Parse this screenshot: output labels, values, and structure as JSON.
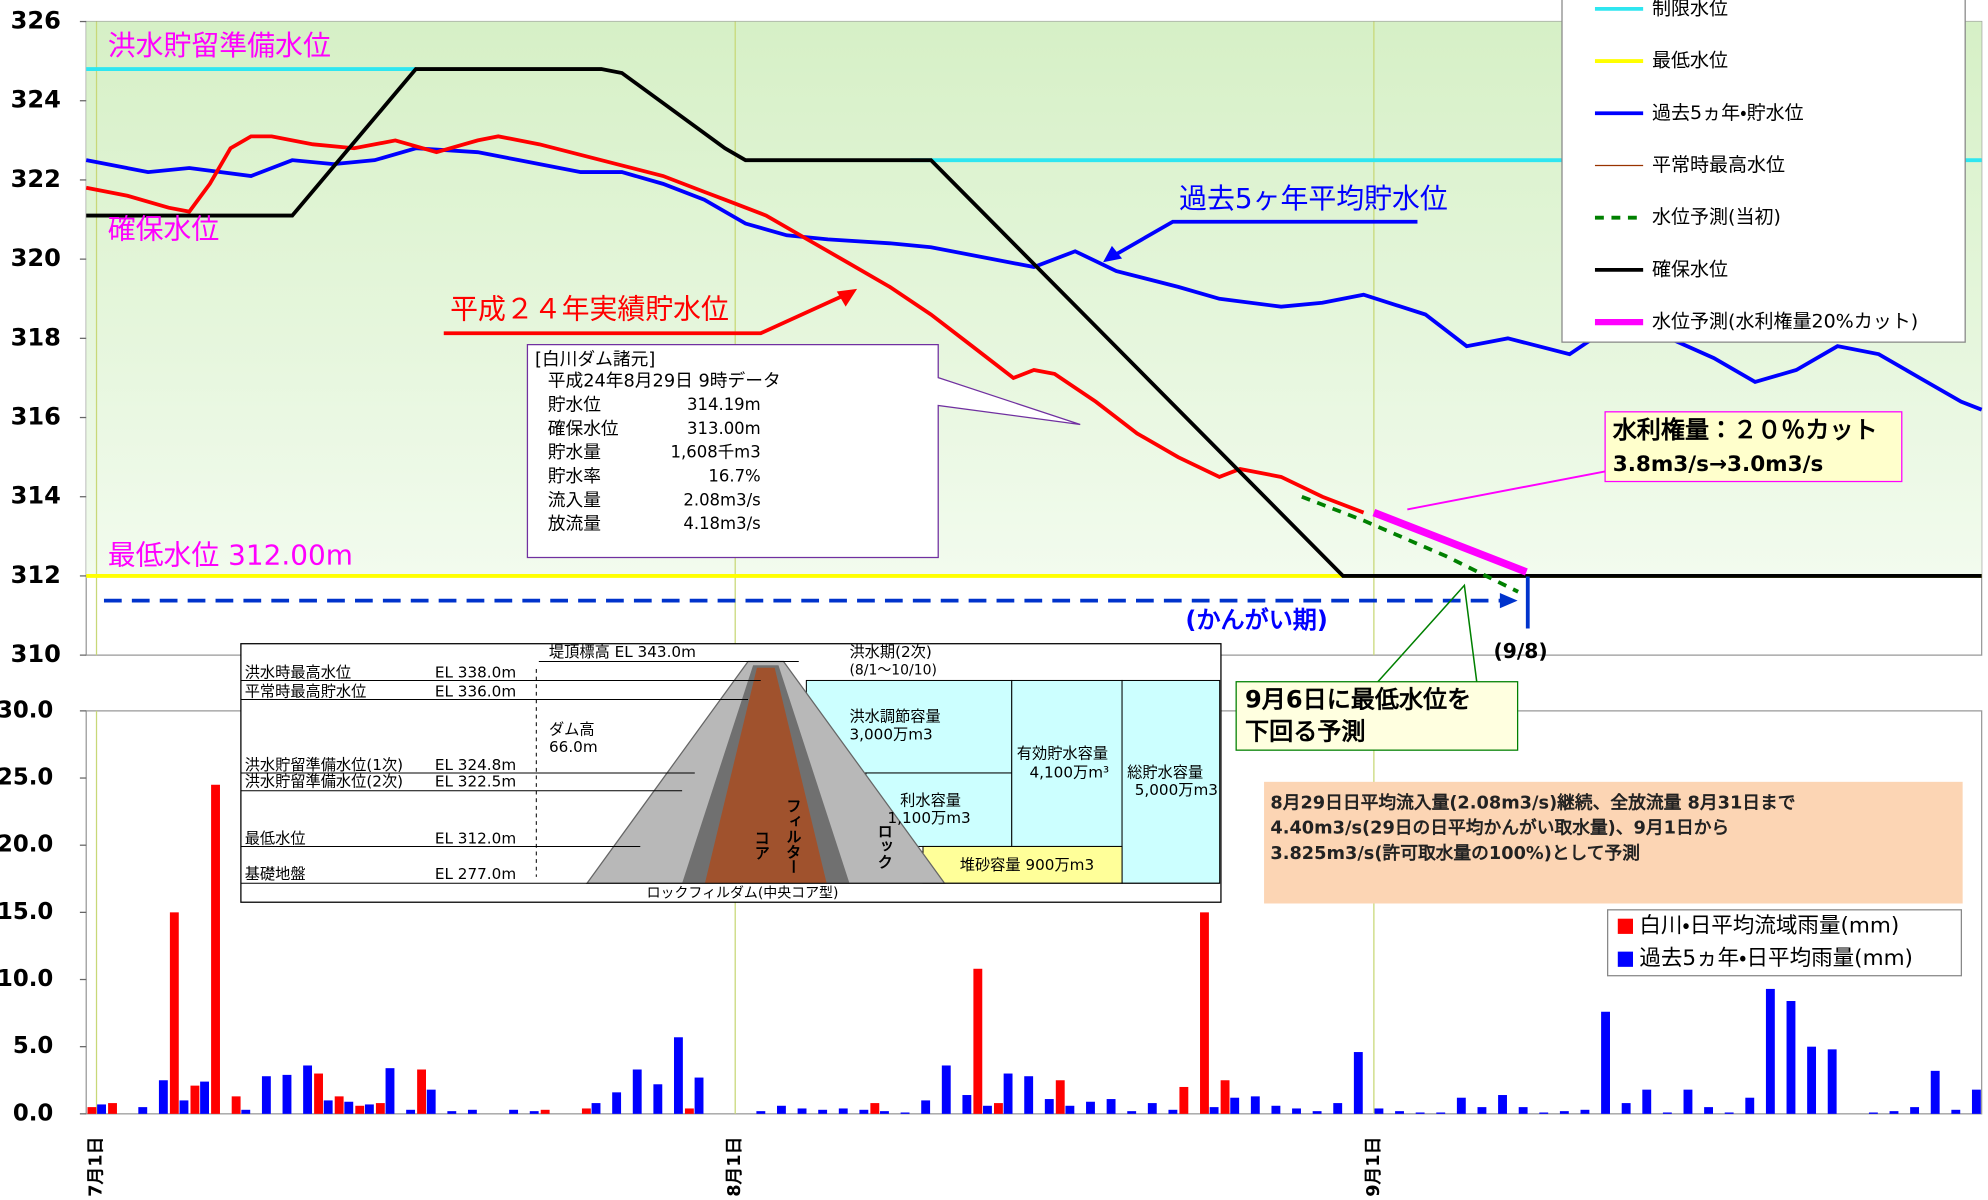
{
  "chart_data": [
    {
      "type": "line",
      "xlim": [
        0,
        92
      ],
      "ylim": [
        310,
        326
      ],
      "yticks": [
        310,
        312,
        314,
        316,
        318,
        320,
        322,
        324,
        326
      ],
      "grid": true,
      "legend": "upper right",
      "annotations": [
        "洪水貯留準備水位",
        "確保水位",
        "最低水位  312.00m",
        "過去5ヶ年平均貯水位",
        "(かんがい期)",
        "(9/8)"
      ],
      "series": [
        {
          "name": "制限水位",
          "color": "#2ee6f0",
          "x": [
            0,
            16,
            16,
            40,
            92
          ],
          "values": [
            324.8,
            324.8,
            null,
            322.5,
            322.5
          ]
        },
        {
          "name": "最低水位",
          "color": "#ffff00",
          "x": [
            0,
            92
          ],
          "values": [
            312,
            312
          ]
        },
        {
          "name": "過去5ヵ年・貯水位",
          "color": "#0000ff",
          "x": [
            0,
            3,
            5,
            8,
            10,
            12,
            14,
            16,
            19,
            21,
            24,
            26,
            28,
            30,
            32,
            34,
            36,
            39,
            41,
            44,
            46,
            48,
            50,
            53,
            55,
            58,
            60,
            62,
            65,
            67,
            69,
            72,
            74,
            76,
            79,
            81,
            83,
            85,
            87,
            89,
            91,
            92
          ],
          "values": [
            322.5,
            322.2,
            322.3,
            322.1,
            322.5,
            322.4,
            322.5,
            322.8,
            322.7,
            322.5,
            322.2,
            322.2,
            321.9,
            321.5,
            320.9,
            320.6,
            320.5,
            320.4,
            320.3,
            320.0,
            319.8,
            320.2,
            319.7,
            319.3,
            319.0,
            318.8,
            318.9,
            319.1,
            318.6,
            317.8,
            318.0,
            317.6,
            318.3,
            318.2,
            317.5,
            316.9,
            317.2,
            317.8,
            317.6,
            317.0,
            316.4,
            316.2
          ]
        },
        {
          "name": "平常時最高水位",
          "color": "#993300",
          "x": [],
          "values": []
        },
        {
          "name": "水位予測(当初)",
          "color": "#008000",
          "dash": true,
          "x": [
            59,
            62,
            66,
            69.5
          ],
          "values": [
            314.0,
            313.4,
            312.5,
            311.6
          ]
        },
        {
          "name": "確保水位",
          "color": "#000000",
          "x": [
            0,
            10,
            16,
            25,
            26,
            31,
            32,
            41,
            61,
            92
          ],
          "values": [
            321.1,
            321.1,
            324.8,
            324.8,
            324.7,
            322.8,
            322.5,
            322.5,
            312,
            312
          ]
        },
        {
          "name": "水位予測(水利権量20%カット)",
          "color": "#ff00ff",
          "x": [
            62.5,
            69.9
          ],
          "values": [
            313.6,
            312.1
          ]
        },
        {
          "name": "平成２４年実績貯水位",
          "color": "#ff0000",
          "in_legend": false,
          "x": [
            0,
            2,
            4,
            5,
            6,
            7,
            8,
            9,
            11,
            13,
            15,
            17,
            19,
            20,
            22,
            25,
            28,
            30,
            31,
            33,
            35,
            37,
            39,
            41,
            43,
            45,
            46,
            47,
            49,
            51,
            53,
            55,
            56,
            58,
            60,
            62
          ],
          "values": [
            321.8,
            321.6,
            321.3,
            321.2,
            321.9,
            322.8,
            323.1,
            323.1,
            322.9,
            322.8,
            323.0,
            322.7,
            323.0,
            323.1,
            322.9,
            322.5,
            322.1,
            321.7,
            321.5,
            321.1,
            320.5,
            319.9,
            319.3,
            318.6,
            317.8,
            317.0,
            317.2,
            317.1,
            316.4,
            315.6,
            315.0,
            314.5,
            314.7,
            314.5,
            314.0,
            313.6
          ]
        }
      ]
    },
    {
      "type": "bar",
      "categories": [
        "7月1日",
        null,
        null,
        null,
        null,
        null,
        null,
        null,
        null,
        null,
        null,
        null,
        null,
        null,
        null,
        null,
        null,
        null,
        null,
        null,
        null,
        null,
        null,
        null,
        null,
        null,
        null,
        null,
        null,
        null,
        null,
        "8月1日",
        null,
        null,
        null,
        null,
        null,
        null,
        null,
        null,
        null,
        null,
        null,
        null,
        null,
        null,
        null,
        null,
        null,
        null,
        null,
        null,
        null,
        null,
        null,
        null,
        null,
        null,
        null,
        null,
        null,
        null,
        "9月1日",
        null,
        null,
        null,
        null,
        null,
        null,
        null,
        null,
        null,
        null,
        null,
        null,
        null,
        null,
        null,
        null,
        null,
        null,
        null,
        null,
        null,
        null,
        null,
        null,
        null,
        null,
        null,
        null,
        null
      ],
      "ylim": [
        0,
        30
      ],
      "yticks": [
        {
          "value": 0,
          "label": "0.0"
        },
        {
          "value": 5,
          "label": "5.0"
        },
        {
          "value": 10,
          "label": "10.0"
        },
        {
          "value": 15,
          "label": "15.0"
        },
        {
          "value": 20,
          "label": "20.0"
        },
        {
          "value": 25,
          "label": "25.0"
        },
        {
          "value": 30,
          "label": "30.0"
        }
      ],
      "grid": true,
      "legend": "upper right",
      "series": [
        {
          "name": "白川・日平均流域雨量(mm)",
          "color": "#ff0000",
          "values": [
            0.5,
            0.8,
            0,
            0,
            15,
            2.1,
            24.5,
            1.3,
            0,
            0,
            0,
            3.0,
            1.3,
            0.6,
            0.8,
            0,
            3.3,
            0,
            0,
            0,
            0,
            0,
            0.3,
            0,
            0.4,
            0,
            0,
            0,
            0,
            0.4,
            0,
            0,
            0,
            0,
            0,
            0,
            0,
            0,
            0.8,
            0,
            0,
            0,
            0,
            10.8,
            0.8,
            0,
            0,
            2.5,
            0,
            0,
            0,
            0,
            0,
            2.0,
            15.0,
            2.5,
            0,
            0,
            0,
            0,
            0,
            0,
            0,
            0,
            0,
            0,
            0,
            0,
            0,
            0,
            0,
            0,
            0,
            0,
            0,
            0,
            0,
            0,
            0,
            0,
            0,
            0,
            0,
            0,
            0,
            0,
            0,
            0,
            0,
            0,
            0,
            0
          ]
        },
        {
          "name": "過去5ヵ年・日平均雨量(mm)",
          "color": "#0000ff",
          "values": [
            0.7,
            0,
            0.5,
            2.5,
            1.0,
            2.4,
            0,
            0.3,
            2.8,
            2.9,
            3.6,
            1.0,
            0.9,
            0.7,
            3.4,
            0.3,
            1.8,
            0.2,
            0.3,
            0,
            0.3,
            0.2,
            0,
            0,
            0.8,
            1.6,
            3.3,
            2.2,
            5.7,
            2.7,
            0,
            0,
            0.2,
            0.6,
            0.4,
            0.3,
            0.4,
            0.3,
            0.2,
            0.1,
            1.0,
            3.6,
            1.4,
            0.6,
            3.0,
            2.8,
            1.1,
            0.6,
            0.9,
            1.1,
            0.2,
            0.8,
            0.3,
            0,
            0.5,
            1.2,
            1.3,
            0.6,
            0.4,
            0.2,
            0.8,
            4.6,
            0.4,
            0.2,
            0.1,
            0.1,
            1.2,
            0.5,
            1.4,
            0.5,
            0.1,
            0.2,
            0.3,
            7.6,
            0.8,
            1.8,
            0.1,
            1.8,
            0.5,
            0.1,
            1.2,
            9.3,
            8.4,
            5.0,
            4.8,
            0,
            0.1,
            0.2,
            0.5,
            3.2,
            0.3,
            1.8
          ]
        }
      ]
    }
  ],
  "info_box": {
    "title": "[白川ダム諸元]",
    "date": "平成24年8月29日  9時データ",
    "rows": [
      [
        "貯水位",
        "314.19m"
      ],
      [
        "確保水位",
        "313.00m"
      ],
      [
        "貯水量",
        "1,608千m3"
      ],
      [
        "貯水率",
        "16.7%"
      ],
      [
        "流入量",
        "2.08m3/s"
      ],
      [
        "放流量",
        "4.18m3/s"
      ]
    ]
  },
  "callouts": [
    [
      "水利権量：２０％カット",
      "3.8m3/s→3.0m3/s"
    ],
    [
      "9月6日に最低水位を",
      "下回る予測"
    ]
  ],
  "note": [
    "8月29日日平均流入量(2.08m3/s)継続、全放流量 8月31日まで",
    "4.40m3/s(29日の日平均かんがい取水量)、9月1日から",
    "3.825m3/s(許可取水量の100%)として予測"
  ],
  "dam_diagram": {
    "levels": [
      [
        "洪水時最高水位",
        "EL 338.0m"
      ],
      [
        "平常時最高貯水位",
        "EL 336.0m"
      ],
      [
        "洪水貯留準備水位(1次)",
        "EL 324.8m"
      ],
      [
        "洪水貯留準備水位(2次)",
        "EL 322.5m"
      ],
      [
        "最低水位",
        "EL 312.0m"
      ],
      [
        "基礎地盤",
        "EL 277.0m"
      ]
    ],
    "crest": "堤頂標高  EL 343.0m",
    "dam_height": [
      "ダム高",
      "66.0m"
    ],
    "flood_period": [
      "洪水期(2次)",
      "(8/1～10/10)"
    ],
    "flood_capacity": [
      "洪水調節容量",
      "3,000万m3"
    ],
    "effective_capacity": [
      "有効貯水容量",
      "4,100万m³"
    ],
    "total_capacity": [
      "総貯水容量",
      "5,000万m3"
    ],
    "water_use_capacity": [
      "利水容量",
      "1,100万m3"
    ],
    "sediment_capacity": "堆砂容量 900万m3",
    "core": "コア",
    "filter": "フィルター",
    "rock": "ロック",
    "caption": "ロックフィルダム(中央コア型)"
  }
}
